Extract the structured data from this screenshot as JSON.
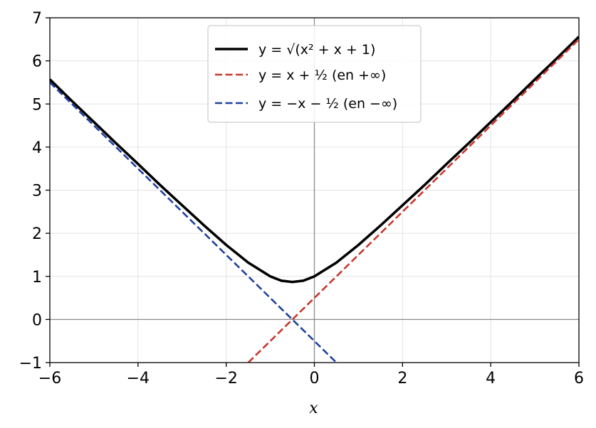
{
  "chart_data": {
    "type": "line",
    "title": "",
    "xlabel": "x",
    "ylabel": "",
    "xlim": [
      -6,
      6
    ],
    "ylim": [
      -1,
      7
    ],
    "x_ticks": [
      -6,
      -4,
      -2,
      0,
      2,
      4,
      6
    ],
    "y_ticks": [
      -1,
      0,
      1,
      2,
      3,
      4,
      5,
      6,
      7
    ],
    "x_tick_labels": [
      "−6",
      "−4",
      "−2",
      "0",
      "2",
      "4",
      "6"
    ],
    "y_tick_labels": [
      "−1",
      "0",
      "1",
      "2",
      "3",
      "4",
      "5",
      "6",
      "7"
    ],
    "grid": true,
    "reference_lines": {
      "x": 0,
      "y": 0
    },
    "legend_position": "top-center",
    "series": [
      {
        "name": "y = √(x² + x + 1)",
        "style": "solid",
        "color": "#000000",
        "x": [
          -6,
          -5.5,
          -5,
          -4.5,
          -4,
          -3.5,
          -3,
          -2.5,
          -2,
          -1.5,
          -1,
          -0.75,
          -0.5,
          -0.25,
          0,
          0.5,
          1,
          1.5,
          2,
          2.5,
          3,
          3.5,
          4,
          4.5,
          5,
          5.5,
          6
        ],
        "y": [
          5.57,
          5.07,
          4.58,
          4.09,
          3.61,
          3.12,
          2.65,
          2.18,
          1.73,
          1.32,
          1.0,
          0.9,
          0.87,
          0.9,
          1.0,
          1.32,
          1.73,
          2.18,
          2.65,
          3.12,
          3.61,
          4.09,
          4.58,
          5.07,
          5.57,
          6.06,
          6.56
        ]
      },
      {
        "name": "y = x + ½ (en +∞)",
        "style": "dashed",
        "color": "#c8372d",
        "x": [
          -1.5,
          6
        ],
        "y": [
          -1.0,
          6.5
        ]
      },
      {
        "name": "y = −x − ½ (en −∞)",
        "style": "dashed",
        "color": "#2040a0",
        "x": [
          -6,
          0.5
        ],
        "y": [
          5.5,
          -1.0
        ]
      }
    ]
  }
}
